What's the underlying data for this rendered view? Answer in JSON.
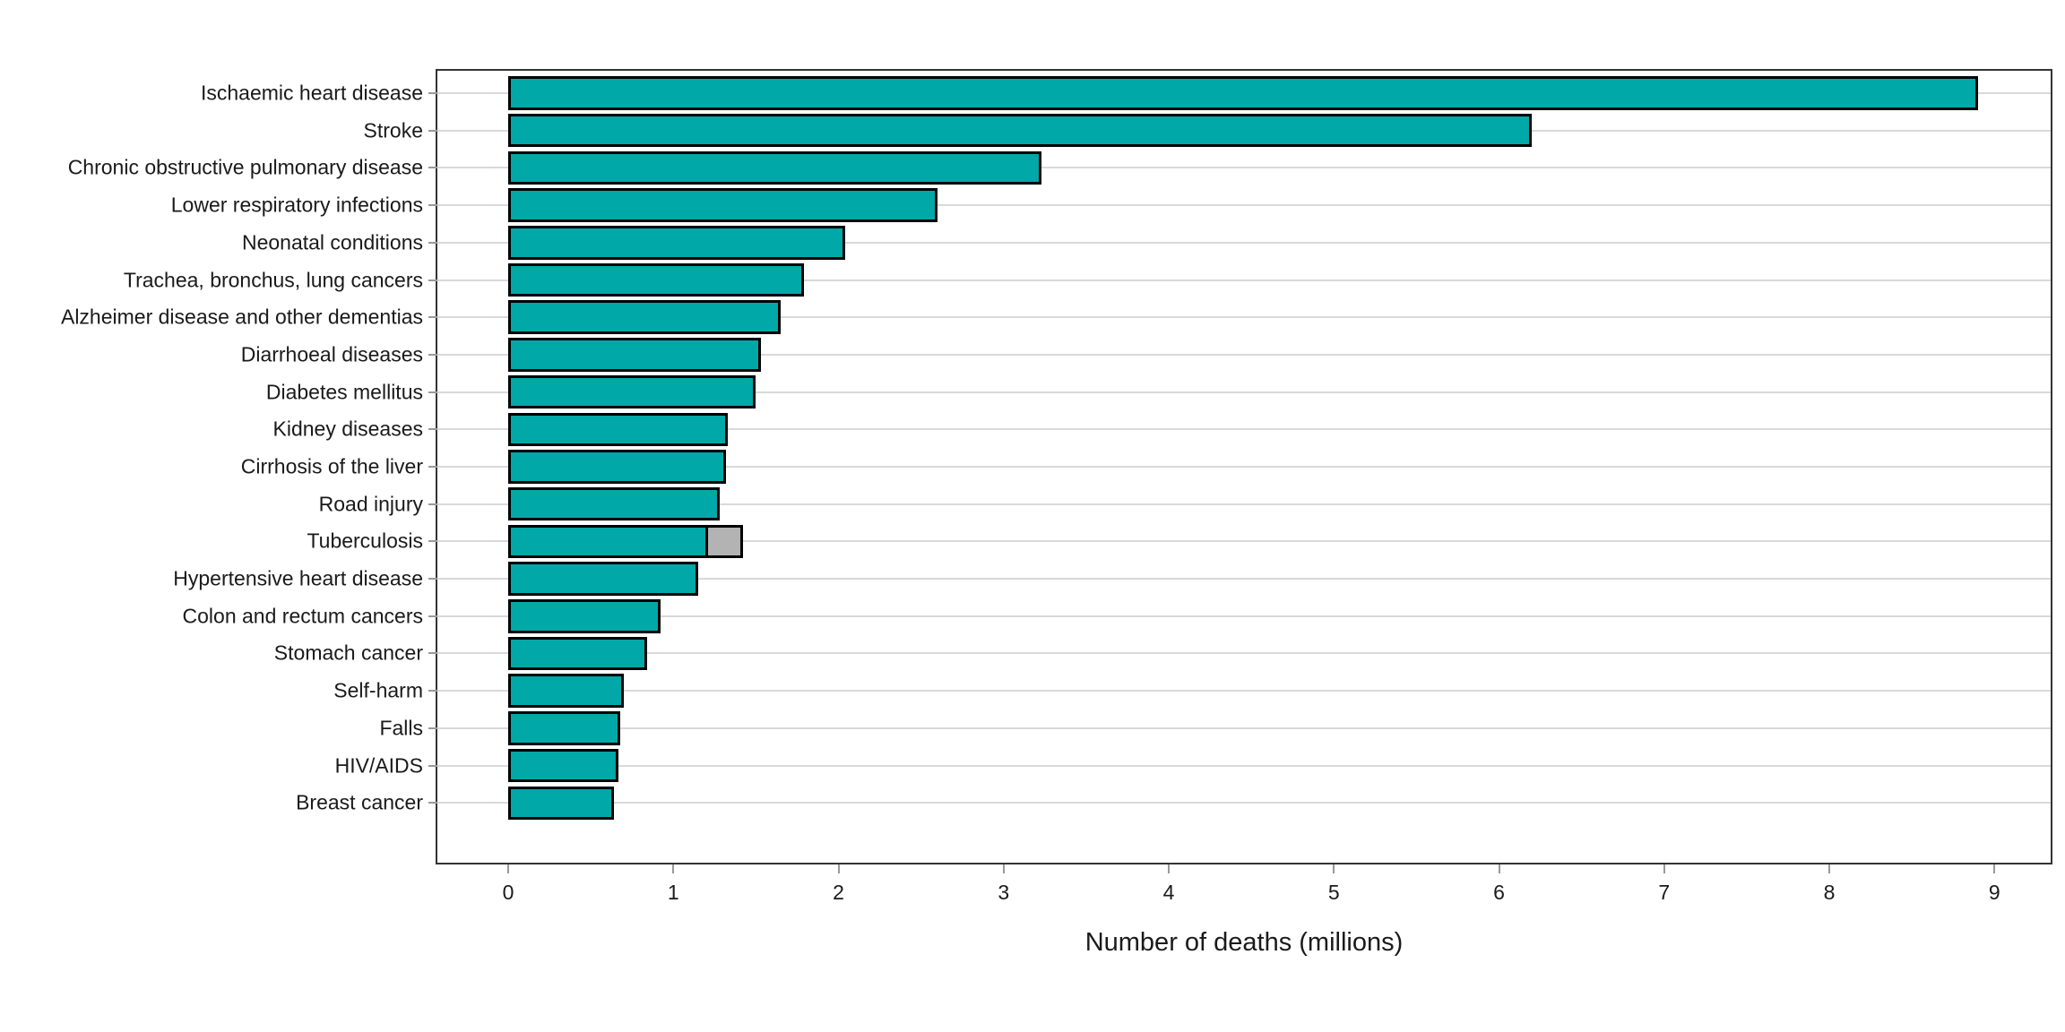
{
  "chart_data": {
    "type": "bar",
    "orientation": "horizontal",
    "title": "",
    "xlabel": "Number of deaths (millions)",
    "ylabel": "",
    "x_ticks": [
      0,
      1,
      2,
      3,
      4,
      5,
      6,
      7,
      8,
      9
    ],
    "xlim": [
      -0.45,
      9.35
    ],
    "grid": "horizontal category gridlines only",
    "legend": "none",
    "categories": [
      "Ischaemic heart disease",
      "Stroke",
      "Chronic obstructive pulmonary disease",
      "Lower respiratory infections",
      "Neonatal conditions",
      "Trachea, bronchus, lung cancers",
      "Alzheimer disease and other dementias",
      "Diarrhoeal diseases",
      "Diabetes mellitus",
      "Kidney diseases",
      "Cirrhosis of the liver",
      "Road injury",
      "Tuberculosis",
      "Hypertensive heart disease",
      "Colon and rectum cancers",
      "Stomach cancer",
      "Self-harm",
      "Falls",
      "HIV/AIDS",
      "Breast cancer"
    ],
    "values": [
      8.9,
      6.2,
      3.23,
      2.6,
      2.04,
      1.79,
      1.65,
      1.53,
      1.5,
      1.33,
      1.32,
      1.28,
      1.21,
      1.15,
      0.92,
      0.84,
      0.7,
      0.68,
      0.67,
      0.64
    ],
    "overlay_segment_values": [
      0,
      0,
      0,
      0,
      0,
      0,
      0,
      0,
      0,
      0,
      0,
      0,
      0.21,
      0,
      0,
      0,
      0,
      0,
      0,
      0
    ],
    "colors": {
      "bar_fill": "#00A8A8",
      "bar_border": "#000000",
      "overlay_fill": "#B3B3B3",
      "gridline": "#D9D9D9",
      "panel_border": "#333333",
      "tick": "#999999",
      "text": "#1A1A1A"
    }
  }
}
